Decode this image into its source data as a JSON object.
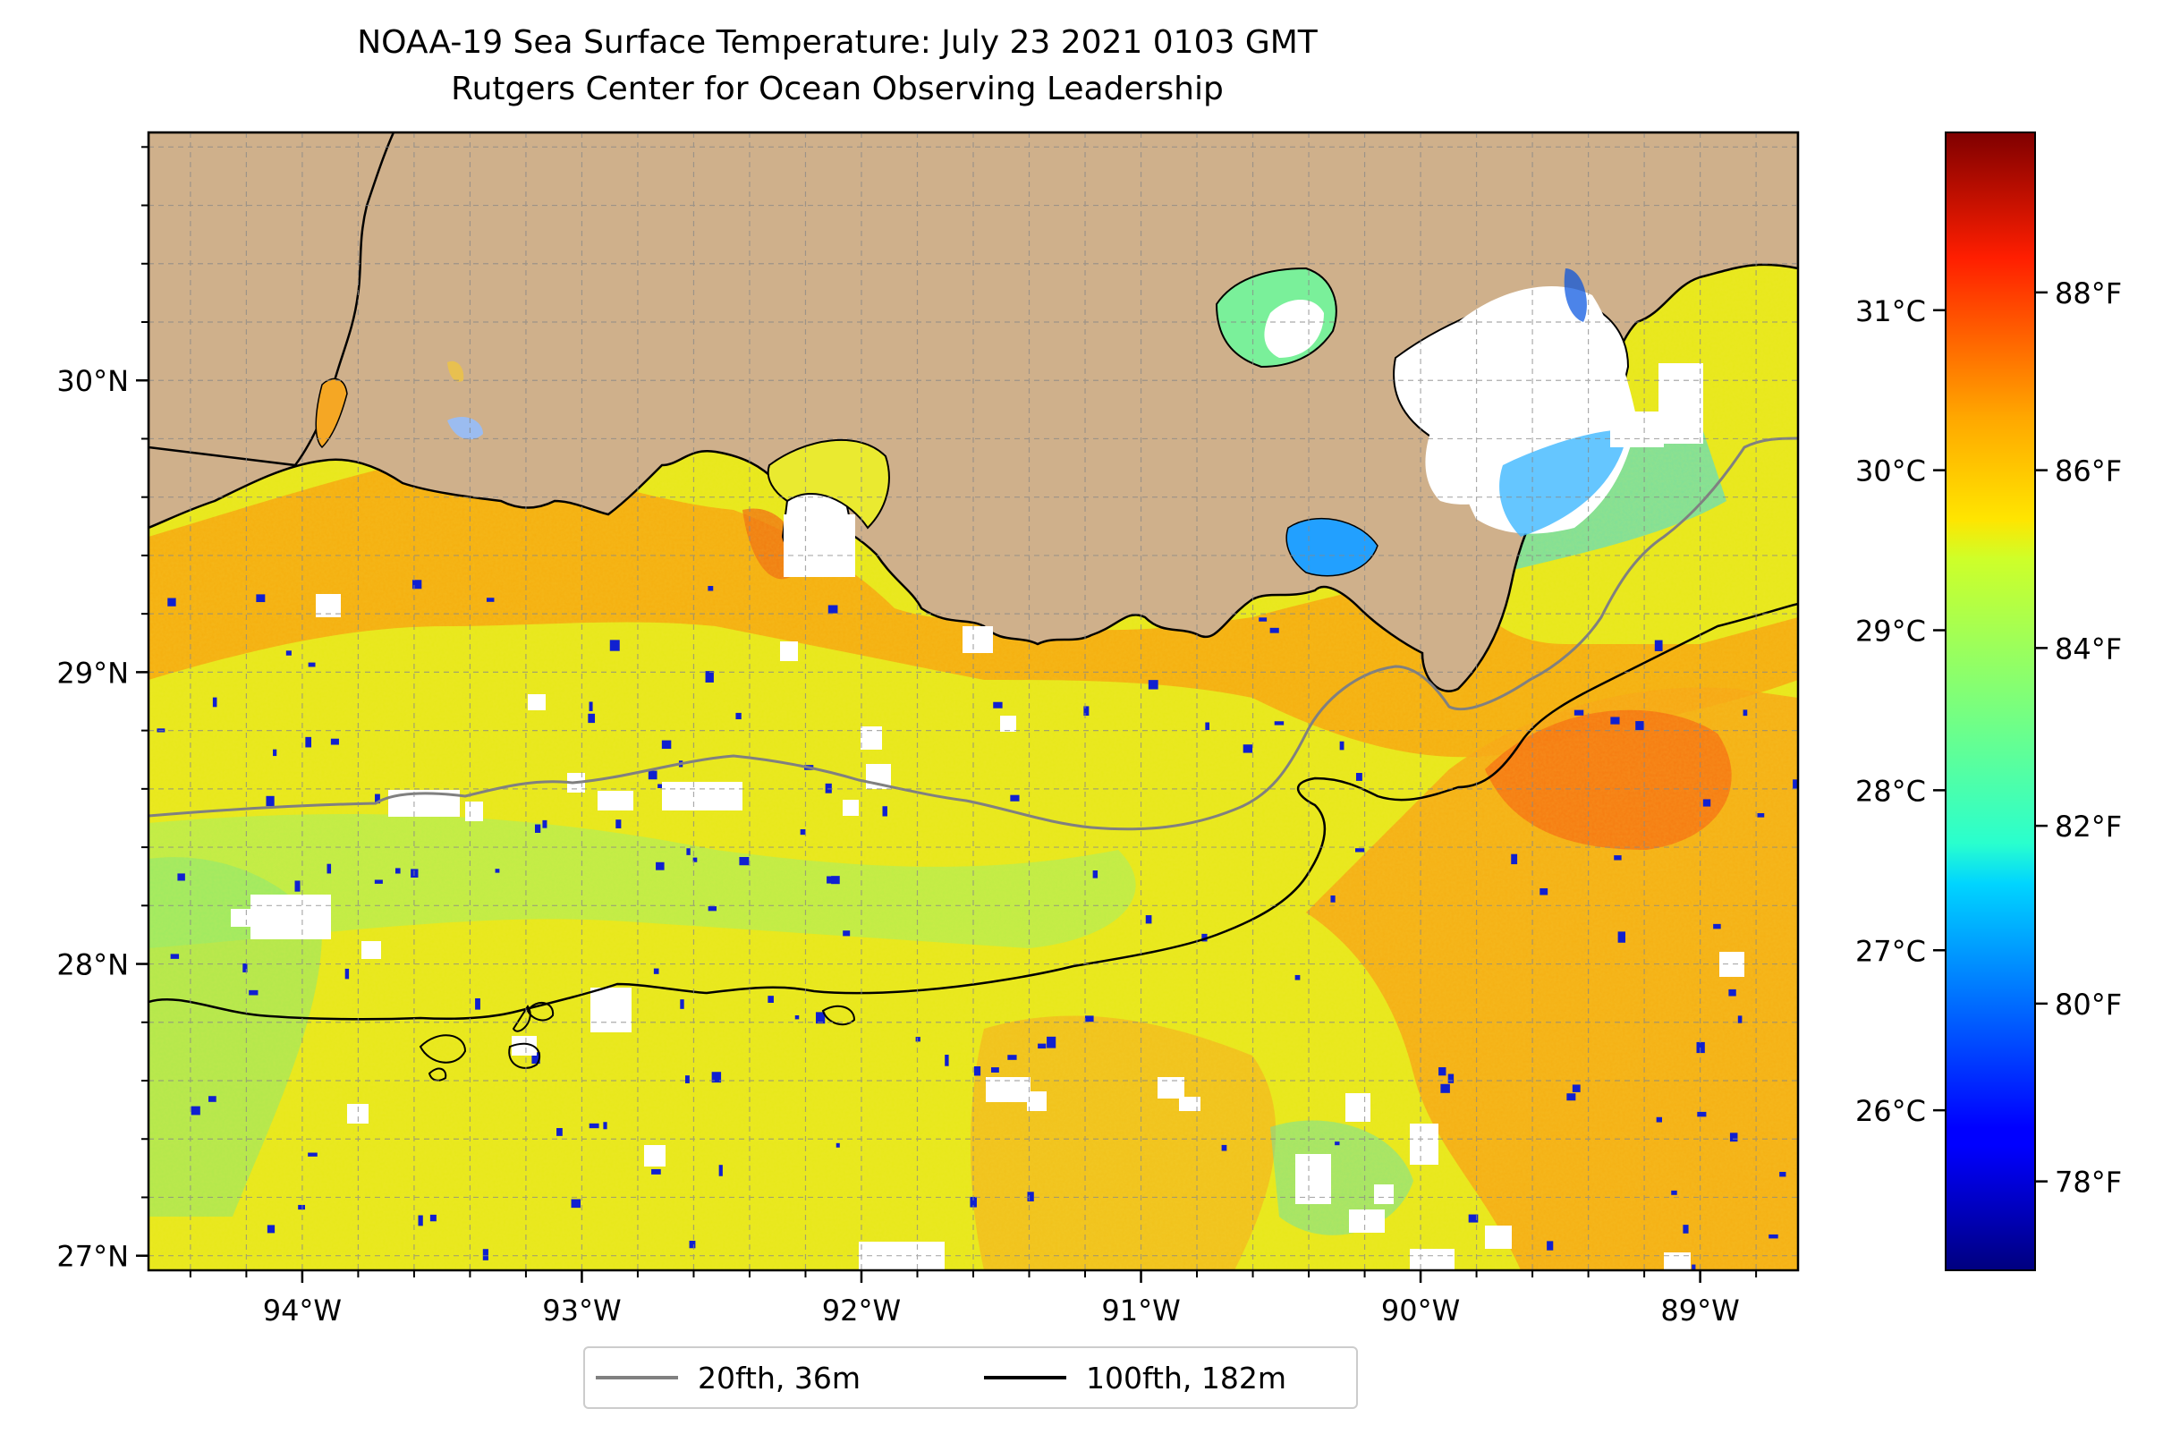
{
  "title": {
    "line1": "NOAA-19 Sea Surface Temperature: July 23 2021 0103 GMT",
    "line2": "Rutgers Center for Ocean Observing Leadership"
  },
  "map": {
    "lon_range": [
      -94.55,
      -88.65
    ],
    "lat_range": [
      26.95,
      30.85
    ],
    "lon_ticks": [
      {
        "value": -94,
        "label": "94°W"
      },
      {
        "value": -93,
        "label": "93°W"
      },
      {
        "value": -92,
        "label": "92°W"
      },
      {
        "value": -91,
        "label": "91°W"
      },
      {
        "value": -90,
        "label": "90°W"
      },
      {
        "value": -89,
        "label": "89°W"
      }
    ],
    "lat_ticks": [
      {
        "value": 27,
        "label": "27°N"
      },
      {
        "value": 28,
        "label": "28°N"
      },
      {
        "value": 29,
        "label": "29°N"
      },
      {
        "value": 30,
        "label": "30°N"
      }
    ],
    "gridlines": true,
    "land_color": "#cfb08b",
    "ocean_default_color": "#e6ea14",
    "missing_color": "#ffffff"
  },
  "colorbar": {
    "colormap": "jet",
    "f_range": [
      77,
      89.8
    ],
    "celsius_ticks": [
      {
        "value": 26,
        "label": "26°C"
      },
      {
        "value": 27,
        "label": "27°C"
      },
      {
        "value": 28,
        "label": "28°C"
      },
      {
        "value": 29,
        "label": "29°C"
      },
      {
        "value": 30,
        "label": "30°C"
      },
      {
        "value": 31,
        "label": "31°C"
      }
    ],
    "fahrenheit_ticks": [
      {
        "value": 78,
        "label": "78°F"
      },
      {
        "value": 80,
        "label": "80°F"
      },
      {
        "value": 82,
        "label": "82°F"
      },
      {
        "value": 84,
        "label": "84°F"
      },
      {
        "value": 86,
        "label": "86°F"
      },
      {
        "value": 88,
        "label": "88°F"
      }
    ]
  },
  "legend": {
    "items": [
      {
        "label": "20fth, 36m",
        "color": "#808080"
      },
      {
        "label": "100fth, 182m",
        "color": "#000000"
      }
    ]
  }
}
